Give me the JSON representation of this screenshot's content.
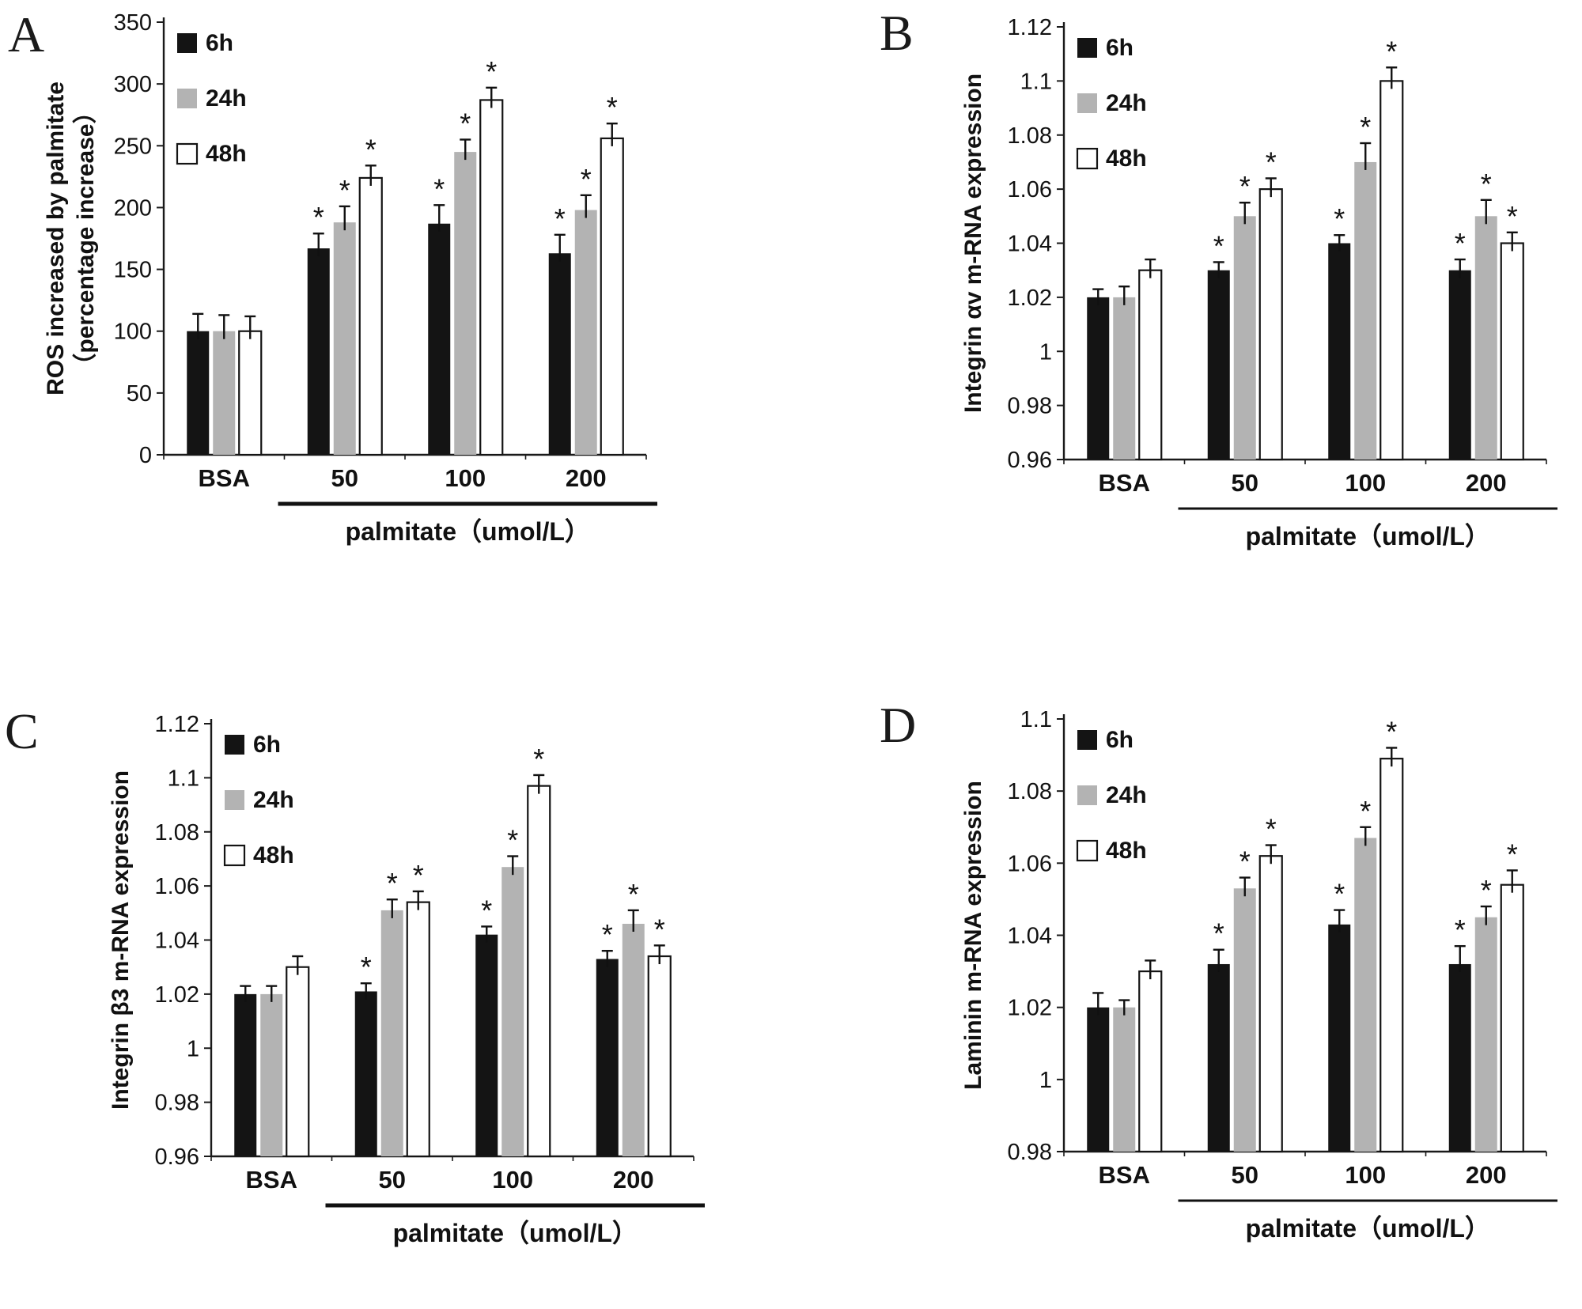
{
  "sig_marker": "*",
  "colors": {
    "bar_6h": "#141414",
    "bar_24h": "#b3b3b3",
    "bar_48h": "#ffffff",
    "axis": "#1a1a1a",
    "background": "#ffffff"
  },
  "chart_data": [
    {
      "panel": "A",
      "type": "bar",
      "title": "",
      "ylabel_lines": [
        "ROS increased by palmitate",
        "（percentage increase）"
      ],
      "xlabel": "palmitate（umol/L）",
      "categories": [
        "BSA",
        "50",
        "100",
        "200"
      ],
      "ylim": [
        0,
        350
      ],
      "yticks": [
        "0",
        "50",
        "100",
        "150",
        "200",
        "250",
        "300",
        "350"
      ],
      "grid": false,
      "legend_position": "top-left-inside",
      "group_note": "underline spans palmitate dose groups 50-200",
      "series": [
        {
          "name": "6h",
          "color": "#141414",
          "values": [
            100,
            167,
            187,
            163
          ],
          "errors": [
            14,
            12,
            15,
            15
          ],
          "significant": [
            false,
            true,
            true,
            true
          ]
        },
        {
          "name": "24h",
          "color": "#b3b3b3",
          "values": [
            100,
            188,
            245,
            198
          ],
          "errors": [
            13,
            13,
            10,
            12
          ],
          "significant": [
            false,
            true,
            true,
            true
          ]
        },
        {
          "name": "48h",
          "color": "#ffffff",
          "values": [
            100,
            224,
            287,
            256
          ],
          "errors": [
            12,
            10,
            10,
            12
          ],
          "significant": [
            false,
            true,
            true,
            true
          ]
        }
      ]
    },
    {
      "panel": "B",
      "type": "bar",
      "title": "",
      "ylabel_lines": [
        "Integrin αv m-RNA expression"
      ],
      "xlabel": "palmitate（umol/L）",
      "categories": [
        "BSA",
        "50",
        "100",
        "200"
      ],
      "ylim": [
        0.96,
        1.12
      ],
      "yticks": [
        "0.96",
        "0.98",
        "1",
        "1.02",
        "1.04",
        "1.06",
        "1.08",
        "1.1",
        "1.12"
      ],
      "grid": false,
      "legend_position": "top-left-inside",
      "group_note": "underline spans palmitate dose groups 50-200",
      "series": [
        {
          "name": "6h",
          "color": "#141414",
          "values": [
            1.02,
            1.03,
            1.04,
            1.03
          ],
          "errors": [
            0.003,
            0.003,
            0.003,
            0.004
          ],
          "significant": [
            false,
            true,
            true,
            true
          ]
        },
        {
          "name": "24h",
          "color": "#b3b3b3",
          "values": [
            1.02,
            1.05,
            1.07,
            1.05
          ],
          "errors": [
            0.004,
            0.005,
            0.007,
            0.006
          ],
          "significant": [
            false,
            true,
            true,
            true
          ]
        },
        {
          "name": "48h",
          "color": "#ffffff",
          "values": [
            1.03,
            1.06,
            1.1,
            1.04
          ],
          "errors": [
            0.004,
            0.004,
            0.005,
            0.004
          ],
          "significant": [
            false,
            true,
            true,
            true
          ]
        }
      ]
    },
    {
      "panel": "C",
      "type": "bar",
      "title": "",
      "ylabel_lines": [
        "Integrin β3 m-RNA expression"
      ],
      "xlabel": "palmitate（umol/L）",
      "categories": [
        "BSA",
        "50",
        "100",
        "200"
      ],
      "ylim": [
        0.96,
        1.12
      ],
      "yticks": [
        "0.96",
        "0.98",
        "1",
        "1.02",
        "1.04",
        "1.06",
        "1.08",
        "1.1",
        "1.12"
      ],
      "grid": false,
      "legend_position": "top-left-inside",
      "group_note": "underline spans palmitate dose groups 50-200",
      "series": [
        {
          "name": "6h",
          "color": "#141414",
          "values": [
            1.02,
            1.021,
            1.042,
            1.033
          ],
          "errors": [
            0.003,
            0.003,
            0.003,
            0.003
          ],
          "significant": [
            false,
            true,
            true,
            true
          ]
        },
        {
          "name": "24h",
          "color": "#b3b3b3",
          "values": [
            1.02,
            1.051,
            1.067,
            1.046
          ],
          "errors": [
            0.003,
            0.004,
            0.004,
            0.005
          ],
          "significant": [
            false,
            true,
            true,
            true
          ]
        },
        {
          "name": "48h",
          "color": "#ffffff",
          "values": [
            1.03,
            1.054,
            1.097,
            1.034
          ],
          "errors": [
            0.004,
            0.004,
            0.004,
            0.004
          ],
          "significant": [
            false,
            true,
            true,
            true
          ]
        }
      ]
    },
    {
      "panel": "D",
      "type": "bar",
      "title": "",
      "ylabel_lines": [
        "Laminin m-RNA expression"
      ],
      "xlabel": "palmitate（umol/L）",
      "categories": [
        "BSA",
        "50",
        "100",
        "200"
      ],
      "ylim": [
        0.98,
        1.1
      ],
      "yticks": [
        "0.98",
        "1",
        "1.02",
        "1.04",
        "1.06",
        "1.08",
        "1.1"
      ],
      "grid": false,
      "legend_position": "top-left-inside",
      "group_note": "underline spans palmitate dose groups 50-200",
      "series": [
        {
          "name": "6h",
          "color": "#141414",
          "values": [
            1.02,
            1.032,
            1.043,
            1.032
          ],
          "errors": [
            0.004,
            0.004,
            0.004,
            0.005
          ],
          "significant": [
            false,
            true,
            true,
            true
          ]
        },
        {
          "name": "24h",
          "color": "#b3b3b3",
          "values": [
            1.02,
            1.053,
            1.067,
            1.045
          ],
          "errors": [
            0.002,
            0.003,
            0.003,
            0.003
          ],
          "significant": [
            false,
            true,
            true,
            true
          ]
        },
        {
          "name": "48h",
          "color": "#ffffff",
          "values": [
            1.03,
            1.062,
            1.089,
            1.054
          ],
          "errors": [
            0.003,
            0.003,
            0.003,
            0.004
          ],
          "significant": [
            false,
            true,
            true,
            true
          ]
        }
      ]
    }
  ]
}
